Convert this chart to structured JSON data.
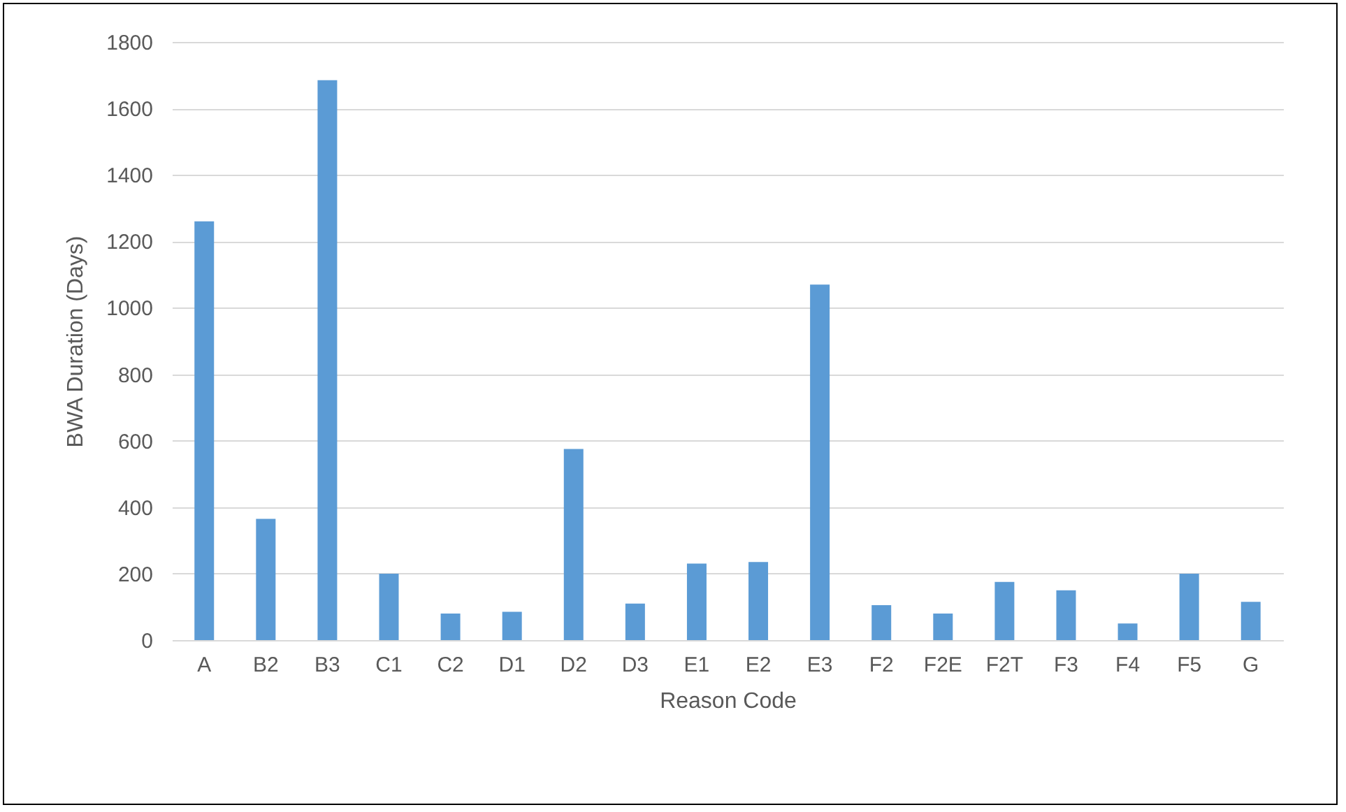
{
  "chart_data": {
    "type": "bar",
    "xlabel": "Reason Code",
    "ylabel": "BWA Duration (Days)",
    "categories": [
      "A",
      "B2",
      "B3",
      "C1",
      "C2",
      "D1",
      "D2",
      "D3",
      "E1",
      "E2",
      "E3",
      "F2",
      "F2E",
      "F2T",
      "F3",
      "F4",
      "F5",
      "G"
    ],
    "values": [
      1260,
      365,
      1685,
      200,
      80,
      85,
      575,
      110,
      230,
      235,
      1070,
      105,
      80,
      175,
      150,
      50,
      200,
      115
    ],
    "color": "#5b9bd5",
    "ylim": [
      0,
      1800
    ],
    "yticks": [
      0,
      200,
      400,
      600,
      800,
      1000,
      1200,
      1400,
      1600,
      1800
    ],
    "grid": "y"
  }
}
